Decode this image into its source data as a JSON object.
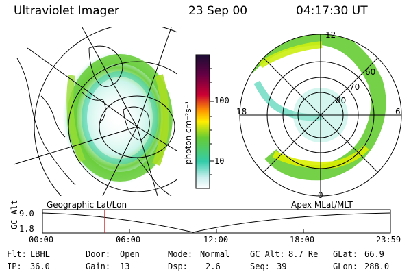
{
  "header": {
    "instrument": "Ultraviolet Imager",
    "date": "23 Sep 00",
    "time": "04:17:30 UT"
  },
  "colorbar": {
    "unit_label": "photon cm⁻²s⁻¹",
    "ticks": [
      "100",
      "10"
    ],
    "colors": [
      "#1a0d33",
      "#cc0033",
      "#ff9900",
      "#ffee00",
      "#66cc33",
      "#33ccaa",
      "#ffffff"
    ]
  },
  "left_panel": {
    "label": "Geographic Lat/Lon"
  },
  "right_panel": {
    "label": "Apex MLat/MLT",
    "mlt_labels": {
      "top": "12",
      "left": "18",
      "right": "6",
      "bottom": "0"
    },
    "lat_labels": [
      "60",
      "70",
      "80"
    ]
  },
  "altitude_plot": {
    "axis_label": "GC Alt",
    "y_ticks": [
      "9.0",
      "1.8"
    ],
    "x_ticks": [
      "00:00",
      "06:00",
      "12:00",
      "18:00",
      "23:59"
    ],
    "cursor_time_hours": 4.29
  },
  "info": {
    "filter_label": "Flt:",
    "filter_value": "LBHL",
    "ip_label": "IP:",
    "ip_value": "36.0",
    "door_label": "Door:",
    "door_value": "Open",
    "gain_label": "Gain:",
    "gain_value": "13",
    "mode_label": "Mode:",
    "mode_value": "Normal",
    "dsp_label": "Dsp:",
    "dsp_value": "2.6",
    "gcalt_label": "GC Alt:",
    "gcalt_value": "8.7 Re",
    "seq_label": "Seq:",
    "seq_value": "39",
    "glat_label": "GLat:",
    "glat_value": "66.9",
    "glon_label": "GLon:",
    "glon_value": "288.0"
  }
}
